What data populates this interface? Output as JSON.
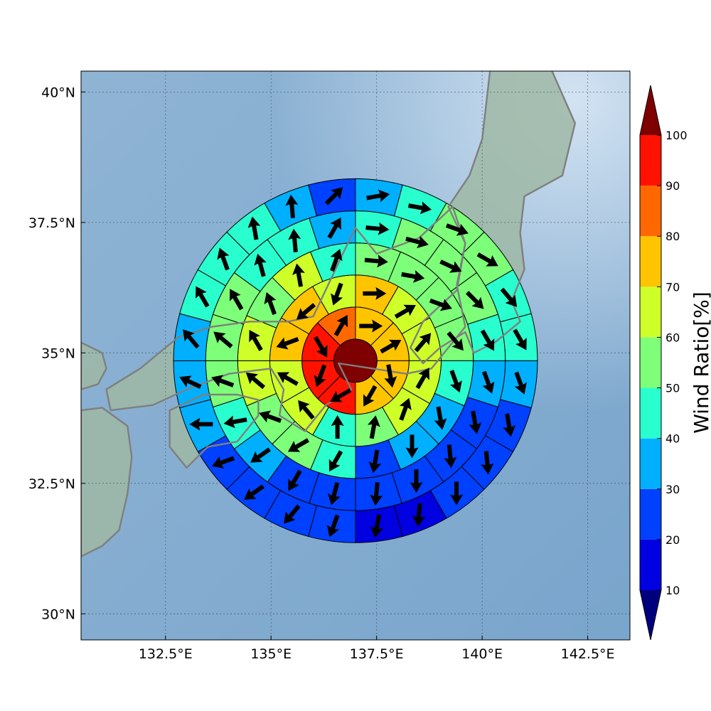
{
  "chart_data": {
    "type": "polar-grid-map",
    "title": "",
    "x_range": [
      130.5,
      143.5
    ],
    "y_range": [
      29.5,
      40.4
    ],
    "x_ticks": [
      132.5,
      135,
      137.5,
      140,
      142.5
    ],
    "x_tick_labels": [
      "132.5°E",
      "135°E",
      "137.5°E",
      "140°E",
      "142.5°E"
    ],
    "y_ticks": [
      30,
      32.5,
      35,
      37.5,
      40
    ],
    "y_tick_labels": [
      "30°N",
      "32.5°N",
      "35°N",
      "37.5°N",
      "40°N"
    ],
    "grid": true,
    "center": [
      137.0,
      34.85
    ],
    "ring_radii_deg": [
      0.51,
      1.27,
      2.03,
      2.79,
      3.55,
      4.31
    ],
    "sectors_per_ring": [
      0,
      8,
      12,
      16,
      20,
      24
    ],
    "center_value": 100,
    "rings": [
      {
        "values": [
          75,
          75,
          75,
          75,
          95,
          95,
          95,
          85
        ]
      },
      {
        "values": [
          75,
          65,
          65,
          65,
          65,
          55,
          45,
          65,
          65,
          75,
          75,
          65
        ]
      },
      {
        "values": [
          55,
          55,
          55,
          55,
          45,
          35,
          35,
          25,
          45,
          55,
          55,
          65,
          65,
          55,
          65,
          45
        ]
      },
      {
        "values": [
          45,
          55,
          55,
          55,
          45,
          35,
          25,
          25,
          25,
          25,
          25,
          25,
          35,
          45,
          55,
          55,
          55,
          45,
          45,
          35
        ]
      },
      {
        "values": [
          35,
          45,
          55,
          55,
          45,
          45,
          35,
          25,
          25,
          25,
          15,
          15,
          25,
          25,
          25,
          25,
          35,
          35,
          35,
          45,
          45,
          45,
          35,
          25
        ]
      }
    ],
    "arrow_directions_deg": [
      [
        90,
        60,
        170,
        210,
        240,
        200,
        150,
        30
      ],
      [
        90,
        60,
        40,
        30,
        20,
        10,
        0,
        320,
        300,
        250,
        230,
        200
      ],
      [
        95,
        100,
        110,
        140,
        160,
        170,
        180,
        190,
        210,
        240,
        290,
        310,
        330,
        340,
        350,
        20
      ],
      [
        95,
        105,
        115,
        135,
        150,
        160,
        170,
        175,
        180,
        185,
        195,
        210,
        235,
        260,
        290,
        310,
        330,
        345,
        355,
        30
      ],
      [
        80,
        100,
        110,
        120,
        140,
        150,
        160,
        170,
        175,
        180,
        185,
        190,
        200,
        220,
        235,
        250,
        270,
        295,
        320,
        330,
        340,
        350,
        355,
        45
      ]
    ],
    "colorbar": {
      "label": "Wind Ratio[%]",
      "boundaries": [
        10,
        20,
        30,
        40,
        50,
        60,
        70,
        80,
        90,
        100
      ],
      "tick_labels": [
        "10",
        "20",
        "30",
        "40",
        "50",
        "60",
        "70",
        "80",
        "90",
        "100"
      ],
      "colors": [
        "#0000e0",
        "#0040ff",
        "#00b0ff",
        "#29ffce",
        "#7dff7a",
        "#ceff29",
        "#ffc400",
        "#ff6800",
        "#ff1300"
      ],
      "under_color": "#00007f",
      "over_color": "#7f0000",
      "extend": "both"
    },
    "map_colors": {
      "sea": "#8fb4d4",
      "sea_light": "#dbe9f6",
      "land": "#9fb8a6",
      "coast": "#7f7f7f"
    }
  }
}
